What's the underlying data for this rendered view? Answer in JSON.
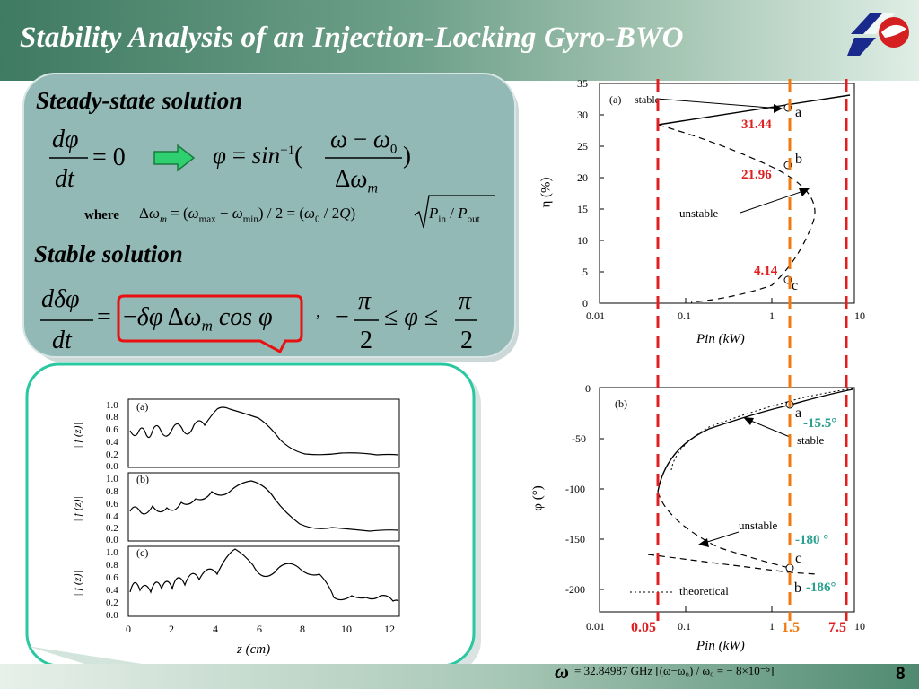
{
  "slide": {
    "title": "Stability Analysis of an Injection-Locking Gyro-BWO",
    "page": "8"
  },
  "left_panel": {
    "steady_heading": "Steady-state solution",
    "stable_heading": "Stable solution",
    "where_label": "where"
  },
  "footnote": {
    "text": "= 32.84987 GHz [(ω−ω₀) / ω₀ = − 8×10⁻⁵]"
  },
  "top_plot": {
    "y_ticks": [
      "35",
      "30",
      "25",
      "20",
      "15",
      "10",
      "5",
      "0"
    ],
    "x_ticks": [
      "0.01",
      "0.1",
      "1",
      "10"
    ],
    "ylabel": "η (%)",
    "xlabel": "Pin (kW)",
    "panel_label": "(a)",
    "stable_label": "stable",
    "unstable_label": "unstable",
    "point_labels": [
      "a",
      "b",
      "c"
    ],
    "values": [
      "31.44",
      "21.96",
      "4.14"
    ]
  },
  "bottom_plot": {
    "y_ticks": [
      "0",
      "-50",
      "-100",
      "-150",
      "-200"
    ],
    "x_ticks": [
      "0.01",
      "0.1",
      "1",
      "10"
    ],
    "ylabel": "φ (°)",
    "xlabel": "Pin (kW)",
    "panel_label": "(b)",
    "stable_label": "stable",
    "unstable_label": "unstable",
    "legend": "theoretical",
    "point_labels": [
      "a",
      "c",
      "b"
    ],
    "values": [
      "-15.5°",
      "-180 °",
      "-186°"
    ],
    "markers": [
      "0.05",
      "1.5",
      "7.5"
    ]
  },
  "field_plot": {
    "panels": [
      "(a)",
      "(b)",
      "(c)"
    ],
    "y_ticks": [
      "1.0",
      "0.8",
      "0.6",
      "0.4",
      "0.2",
      "0.0"
    ],
    "ylabel": "| f (z)|",
    "x_ticks": [
      "0",
      "2",
      "4",
      "6",
      "8",
      "10",
      "12"
    ],
    "xlabel": "z (cm)"
  },
  "colors": {
    "panel": "#8fb5b2",
    "red": "#e02020",
    "orange": "#f07a10",
    "teal": "#2aa090"
  }
}
